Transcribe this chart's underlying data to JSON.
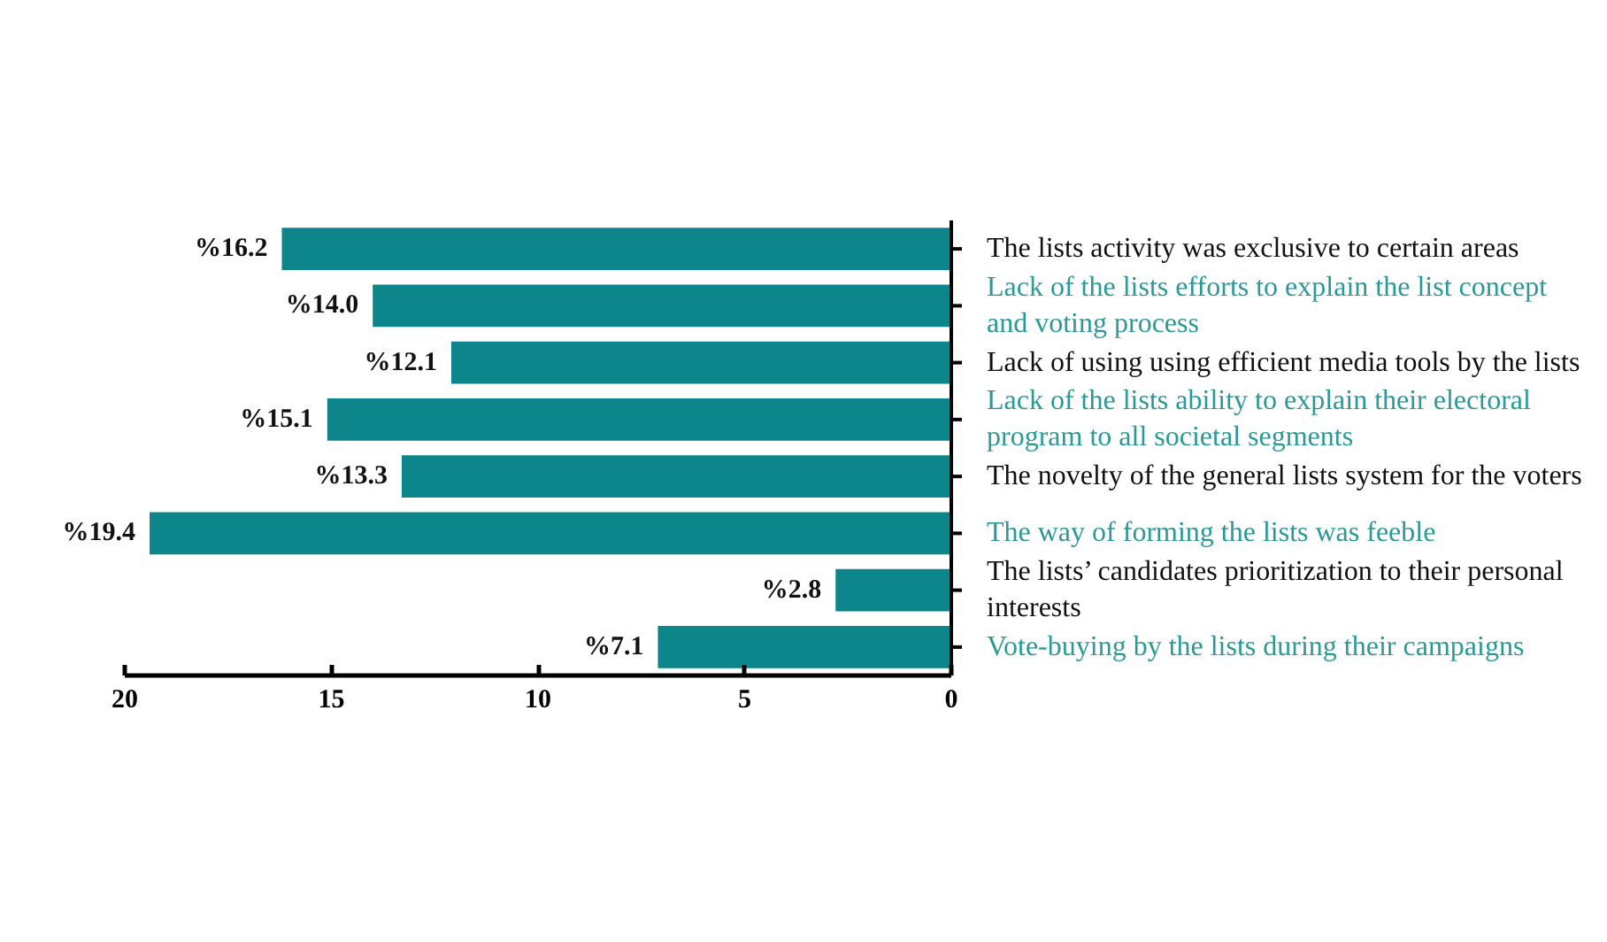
{
  "chart_data": {
    "type": "bar",
    "orientation": "horizontal",
    "categories": [
      "The lists activity was exclusive to certain areas",
      "Lack of the lists efforts to explain the list concept and voting process",
      "Lack of using using efficient media tools by the lists",
      "Lack of the lists ability to explain their electoral program to all societal segments",
      "The novelty of the general lists system for the voters",
      "The way of forming the lists was feeble",
      "The lists’ candidates prioritization to their personal interests",
      "Vote-buying by the lists during their campaigns"
    ],
    "values": [
      16.2,
      14.0,
      12.1,
      15.1,
      13.3,
      19.4,
      2.8,
      7.1
    ],
    "value_labels": [
      "%16.2",
      "%14.0",
      "%12.1",
      "%15.1",
      "%13.3",
      "%19.4",
      "%2.8",
      "%7.1"
    ],
    "color": "#0d868b",
    "xlim": [
      20,
      0
    ],
    "xticks": [
      20,
      15,
      10,
      5,
      0
    ],
    "grid": false
  }
}
